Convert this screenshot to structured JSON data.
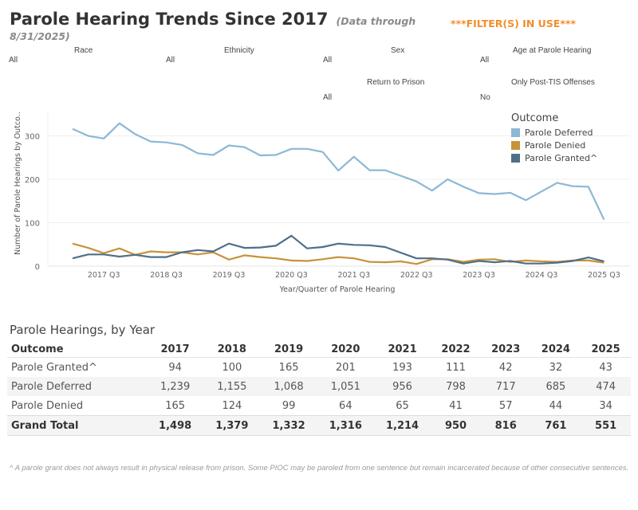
{
  "header": {
    "title": "Parole Hearing Trends Since 2017",
    "subtitle_line1": "(Data through",
    "subtitle_line2": "8/31/2025)",
    "filter_flag": "***FILTER(S) IN USE***"
  },
  "filters": [
    {
      "label": "Race",
      "value": "All"
    },
    {
      "label": "Ethnicity",
      "value": "All"
    },
    {
      "label": "Sex",
      "value": "All"
    },
    {
      "label": "Age at Parole Hearing",
      "value": "All"
    },
    {
      "label": "Return to Prison",
      "value": "All"
    },
    {
      "label": "Only Post-TIS Offenses",
      "value": "No"
    }
  ],
  "colors": {
    "deferred": "#8cb8d6",
    "denied": "#c8923a",
    "granted": "#4f6f88",
    "accent": "#f28e2b"
  },
  "chart_data": {
    "type": "line",
    "title": "",
    "xlabel": "Year/Quarter of Parole Hearing",
    "ylabel": "Number of Parole Hearings by Outco..",
    "ylim": [
      0,
      340
    ],
    "yticks": [
      0,
      100,
      200,
      300
    ],
    "grid": true,
    "legend_title": "Outcome",
    "legend_position": "top-right",
    "x": [
      "2017 Q1",
      "2017 Q2",
      "2017 Q3",
      "2017 Q4",
      "2018 Q1",
      "2018 Q2",
      "2018 Q3",
      "2018 Q4",
      "2019 Q1",
      "2019 Q2",
      "2019 Q3",
      "2019 Q4",
      "2020 Q1",
      "2020 Q2",
      "2020 Q3",
      "2020 Q4",
      "2021 Q1",
      "2021 Q2",
      "2021 Q3",
      "2021 Q4",
      "2022 Q1",
      "2022 Q2",
      "2022 Q3",
      "2022 Q4",
      "2023 Q1",
      "2023 Q2",
      "2023 Q3",
      "2023 Q4",
      "2024 Q1",
      "2024 Q2",
      "2024 Q3",
      "2024 Q4",
      "2025 Q1",
      "2025 Q2",
      "2025 Q3"
    ],
    "xtick_labels": [
      "2017 Q3",
      "2018 Q3",
      "2019 Q3",
      "2020 Q3",
      "2021 Q3",
      "2022 Q3",
      "2023 Q3",
      "2024 Q3",
      "2025 Q3"
    ],
    "series": [
      {
        "name": "Parole Deferred",
        "color_key": "deferred",
        "values": [
          316,
          300,
          294,
          329,
          304,
          287,
          285,
          279,
          260,
          256,
          278,
          274,
          255,
          256,
          270,
          270,
          263,
          220,
          252,
          221,
          221,
          208,
          195,
          174,
          200,
          183,
          168,
          166,
          169,
          152,
          172,
          192,
          184,
          183,
          107
        ]
      },
      {
        "name": "Parole Denied",
        "color_key": "denied",
        "values": [
          52,
          42,
          30,
          41,
          26,
          34,
          32,
          32,
          27,
          32,
          15,
          25,
          21,
          18,
          13,
          12,
          16,
          21,
          18,
          10,
          9,
          11,
          5,
          16,
          16,
          10,
          15,
          16,
          10,
          13,
          11,
          10,
          13,
          13,
          8
        ]
      },
      {
        "name": "Parole Granted^",
        "color_key": "granted",
        "values": [
          18,
          27,
          27,
          22,
          26,
          21,
          21,
          32,
          37,
          34,
          52,
          42,
          43,
          47,
          70,
          41,
          44,
          52,
          49,
          48,
          44,
          31,
          18,
          18,
          15,
          6,
          12,
          9,
          12,
          6,
          6,
          8,
          12,
          20,
          11
        ]
      }
    ]
  },
  "table": {
    "title": "Parole Hearings, by Year",
    "header": [
      "Outcome",
      "2017",
      "2018",
      "2019",
      "2020",
      "2021",
      "2022",
      "2023",
      "2024",
      "2025"
    ],
    "rows": [
      [
        "Parole Granted^",
        "94",
        "100",
        "165",
        "201",
        "193",
        "111",
        "42",
        "32",
        "43"
      ],
      [
        "Parole Deferred",
        "1,239",
        "1,155",
        "1,068",
        "1,051",
        "956",
        "798",
        "717",
        "685",
        "474"
      ],
      [
        "Parole Denied",
        "165",
        "124",
        "99",
        "64",
        "65",
        "41",
        "57",
        "44",
        "34"
      ]
    ],
    "total": [
      "Grand Total",
      "1,498",
      "1,379",
      "1,332",
      "1,316",
      "1,214",
      "950",
      "816",
      "761",
      "551"
    ]
  },
  "footnote": "^ A parole grant does not always result in physical release from prison. Some PIOC may be paroled from one sentence but remain incarcerated because of other consecutive sentences."
}
